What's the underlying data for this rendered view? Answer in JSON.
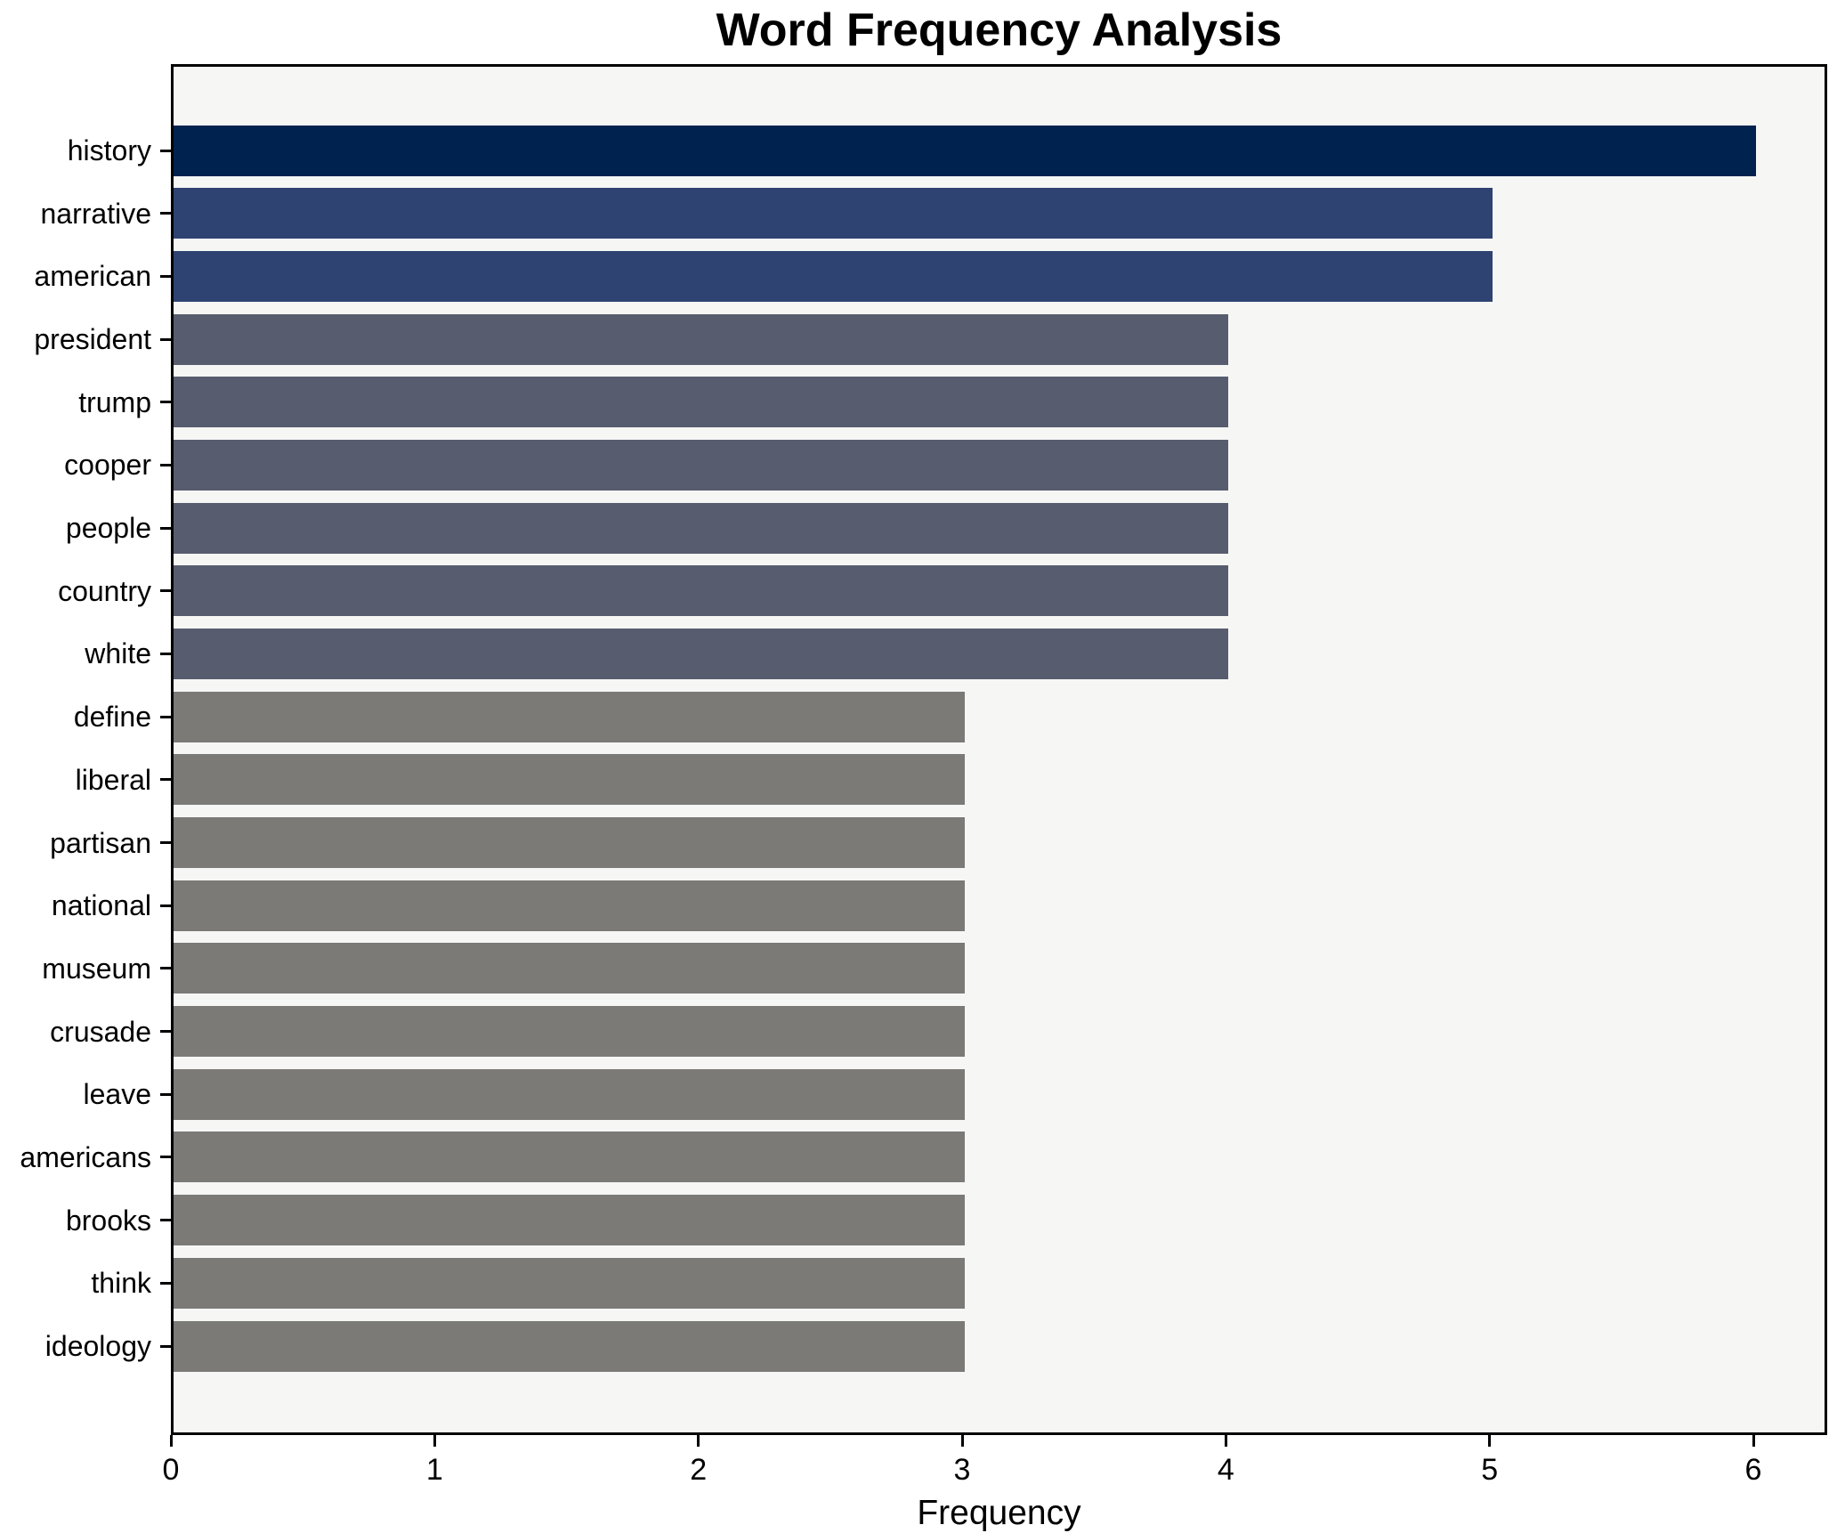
{
  "title": "Word Frequency Analysis",
  "xlabel": "Frequency",
  "chart_data": {
    "type": "bar",
    "orientation": "horizontal",
    "title": "Word Frequency Analysis",
    "xlabel": "Frequency",
    "ylabel": "",
    "categories": [
      "history",
      "narrative",
      "american",
      "president",
      "trump",
      "cooper",
      "people",
      "country",
      "white",
      "define",
      "liberal",
      "partisan",
      "national",
      "museum",
      "crusade",
      "leave",
      "americans",
      "brooks",
      "think",
      "ideology"
    ],
    "values": [
      6,
      5,
      5,
      4,
      4,
      4,
      4,
      4,
      4,
      3,
      3,
      3,
      3,
      3,
      3,
      3,
      3,
      3,
      3,
      3
    ],
    "bar_colors": [
      "#00224e",
      "#2e4372",
      "#2e4372",
      "#575d6e",
      "#575d6e",
      "#575d6e",
      "#575d6e",
      "#575d6e",
      "#575d6e",
      "#7b7a77",
      "#7b7a77",
      "#7b7a77",
      "#7b7a77",
      "#7b7a77",
      "#7b7a77",
      "#7b7a77",
      "#7b7a77",
      "#7b7a77",
      "#7b7a77",
      "#7b7a77"
    ],
    "xlim": [
      0,
      6.28
    ],
    "x_ticks": [
      0,
      1,
      2,
      3,
      4,
      5,
      6
    ],
    "grid": false,
    "legend": "none",
    "plot_bg": "#f6f6f5",
    "fig_bg": "#ffffff",
    "spine_color": "#000000"
  }
}
